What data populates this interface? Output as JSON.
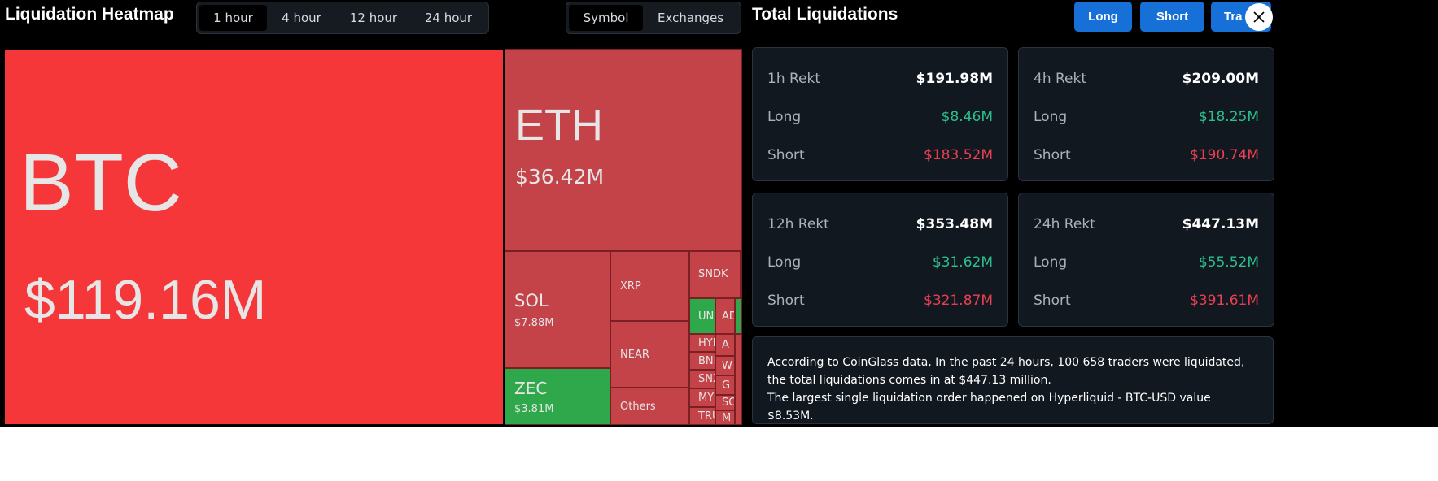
{
  "header": {
    "title": "Liquidation Heatmap",
    "time_tabs": [
      "1 hour",
      "4 hour",
      "12 hour",
      "24 hour"
    ],
    "view_tabs": [
      "Symbol",
      "Exchanges"
    ]
  },
  "heatmap": {
    "tiles": [
      {
        "symbol": "BTC",
        "value": "$119.16M"
      },
      {
        "symbol": "ETH",
        "value": "$36.42M"
      },
      {
        "symbol": "SOL",
        "value": "$7.88M"
      },
      {
        "symbol": "ZEC",
        "value": "$3.81M"
      },
      {
        "symbol": "XRP"
      },
      {
        "symbol": "NEAR"
      },
      {
        "symbol": "Others"
      },
      {
        "symbol": "SNDK"
      },
      {
        "symbol": "UN"
      },
      {
        "symbol": "AD"
      },
      {
        "symbol": "HYP"
      },
      {
        "symbol": "BNB"
      },
      {
        "symbol": "SNX"
      },
      {
        "symbol": "MY"
      },
      {
        "symbol": "TRU"
      },
      {
        "symbol": "A"
      },
      {
        "symbol": "W"
      },
      {
        "symbol": "G"
      },
      {
        "symbol": "SO"
      },
      {
        "symbol": "M"
      }
    ]
  },
  "summary": {
    "title": "Total Liquidations",
    "buttons": [
      "Long",
      "Short",
      "Tra"
    ],
    "cards": [
      {
        "label": "1h Rekt",
        "total": "$191.98M",
        "long_label": "Long",
        "long": "$8.46M",
        "short_label": "Short",
        "short": "$183.52M"
      },
      {
        "label": "4h Rekt",
        "total": "$209.00M",
        "long_label": "Long",
        "long": "$18.25M",
        "short_label": "Short",
        "short": "$190.74M"
      },
      {
        "label": "12h Rekt",
        "total": "$353.48M",
        "long_label": "Long",
        "long": "$31.62M",
        "short_label": "Short",
        "short": "$321.87M"
      },
      {
        "label": "24h Rekt",
        "total": "$447.13M",
        "long_label": "Long",
        "long": "$55.52M",
        "short_label": "Short",
        "short": "$391.61M"
      }
    ],
    "note": [
      "According to CoinGlass data, In the past 24 hours, 100 658 traders were liquidated, the total liquidations comes in at $447.13 million.",
      "The largest single liquidation order happened on Hyperliquid - BTC-USD value $8.53M."
    ]
  }
}
